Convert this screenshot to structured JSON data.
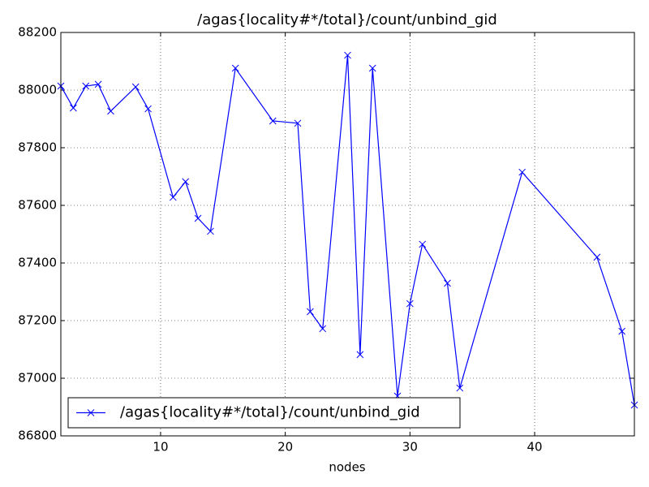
{
  "chart_data": {
    "type": "line",
    "title": "/agas{locality#*/total}/count/unbind_gid",
    "x_label": "nodes",
    "x": [
      2,
      3,
      4,
      5,
      6,
      8,
      9,
      11,
      12,
      13,
      14,
      16,
      19,
      21,
      22,
      23,
      25,
      26,
      27,
      29,
      30,
      31,
      33,
      34,
      39,
      45,
      47,
      48
    ],
    "series": [
      {
        "name": "/agas{locality#*/total}/count/unbind_gid",
        "color": "#0000ff",
        "marker": "x",
        "values": [
          88014,
          87938,
          88014,
          88020,
          87927,
          88011,
          87935,
          87628,
          87682,
          87555,
          87510,
          88076,
          87893,
          87885,
          87231,
          87172,
          88121,
          87082,
          88076,
          86938,
          87259,
          87465,
          87330,
          86966,
          87715,
          87420,
          87163,
          86907
        ]
      }
    ],
    "xlim": [
      2,
      48
    ],
    "xticks": [
      10,
      20,
      30,
      40
    ],
    "ylim": [
      86800,
      88200
    ],
    "yticks": [
      86800,
      87000,
      87200,
      87400,
      87600,
      87800,
      88000,
      88200
    ],
    "grid": true,
    "legend": "lower left"
  }
}
